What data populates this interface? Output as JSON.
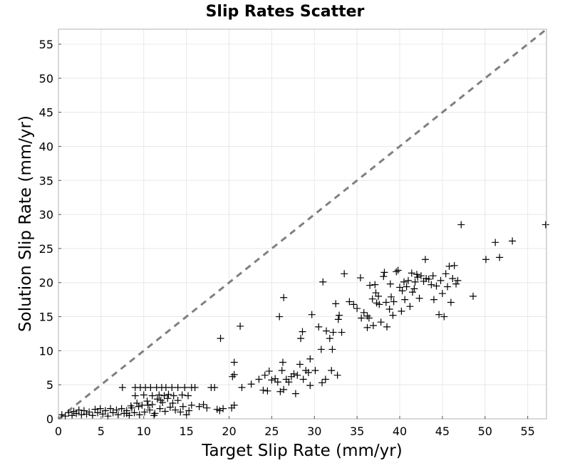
{
  "chart_data": {
    "type": "scatter",
    "title": "Slip Rates Scatter",
    "xlabel": "Target Slip Rate (mm/yr)",
    "ylabel": "Solution Slip Rate (mm/yr)",
    "xlim": [
      0,
      57.2
    ],
    "ylim": [
      0,
      57.2
    ],
    "xticks": [
      0,
      5,
      10,
      15,
      20,
      25,
      30,
      35,
      40,
      45,
      50,
      55
    ],
    "yticks": [
      0,
      5,
      10,
      15,
      20,
      25,
      30,
      35,
      40,
      45,
      50,
      55
    ],
    "grid": true,
    "marker": "plus",
    "marker_color": "#000000",
    "reference_line": {
      "label": "",
      "from": [
        0,
        0
      ],
      "to": [
        57.2,
        57.2
      ],
      "style": "dashed",
      "color": "#808080"
    },
    "series": [
      {
        "name": "",
        "points": [
          [
            0.4,
            0.6
          ],
          [
            0.8,
            0.4
          ],
          [
            1.2,
            0.9
          ],
          [
            1.6,
            0.5
          ],
          [
            1.8,
            1.1
          ],
          [
            2.1,
            0.8
          ],
          [
            2.4,
            1.3
          ],
          [
            2.7,
            0.6
          ],
          [
            3.0,
            1.2
          ],
          [
            3.3,
            0.7
          ],
          [
            3.6,
            1.0
          ],
          [
            4.0,
            0.5
          ],
          [
            4.3,
            1.4
          ],
          [
            4.6,
            0.9
          ],
          [
            4.9,
            1.5
          ],
          [
            5.2,
            0.7
          ],
          [
            5.5,
            1.2
          ],
          [
            5.8,
            0.4
          ],
          [
            6.1,
            1.5
          ],
          [
            6.4,
            0.9
          ],
          [
            6.8,
            1.3
          ],
          [
            7.0,
            0.6
          ],
          [
            7.4,
            1.5
          ],
          [
            7.7,
            0.8
          ],
          [
            8.0,
            1.2
          ],
          [
            8.3,
            0.5
          ],
          [
            8.6,
            1.6
          ],
          [
            8.9,
            0.9
          ],
          [
            9.2,
            2.3
          ],
          [
            9.5,
            0.6
          ],
          [
            9.8,
            2.0
          ],
          [
            10.1,
            1.0
          ],
          [
            10.4,
            2.6
          ],
          [
            10.7,
            1.3
          ],
          [
            11.0,
            2.1
          ],
          [
            11.3,
            0.8
          ],
          [
            11.6,
            2.9
          ],
          [
            11.9,
            1.5
          ],
          [
            12.2,
            2.4
          ],
          [
            12.5,
            1.1
          ],
          [
            12.8,
            3.0
          ],
          [
            13.1,
            1.7
          ],
          [
            13.4,
            2.3
          ],
          [
            13.7,
            1.3
          ],
          [
            14.0,
            2.7
          ],
          [
            14.3,
            1.0
          ],
          [
            14.6,
            1.8
          ],
          [
            15.0,
            0.6
          ],
          [
            15.3,
            1.2
          ],
          [
            15.6,
            2.0
          ],
          [
            7.5,
            4.6
          ],
          [
            8.0,
            0.8
          ],
          [
            8.5,
            1.9
          ],
          [
            9.0,
            3.4
          ],
          [
            9.0,
            4.6
          ],
          [
            9.4,
            1.8
          ],
          [
            9.6,
            4.6
          ],
          [
            10.0,
            3.5
          ],
          [
            10.2,
            4.6
          ],
          [
            10.5,
            2.0
          ],
          [
            10.8,
            4.6
          ],
          [
            11.0,
            3.4
          ],
          [
            11.2,
            0.5
          ],
          [
            11.5,
            4.6
          ],
          [
            11.8,
            3.5
          ],
          [
            12.0,
            2.7
          ],
          [
            12.1,
            4.6
          ],
          [
            12.4,
            3.4
          ],
          [
            12.6,
            4.6
          ],
          [
            12.9,
            3.6
          ],
          [
            13.3,
            4.6
          ],
          [
            13.5,
            3.4
          ],
          [
            14.0,
            4.6
          ],
          [
            14.5,
            3.5
          ],
          [
            14.8,
            4.6
          ],
          [
            15.2,
            3.4
          ],
          [
            15.6,
            4.6
          ],
          [
            16.0,
            4.6
          ],
          [
            16.5,
            1.8
          ],
          [
            17.0,
            2.1
          ],
          [
            17.4,
            1.6
          ],
          [
            17.9,
            4.6
          ],
          [
            18.3,
            4.6
          ],
          [
            18.6,
            1.4
          ],
          [
            18.9,
            1.2
          ],
          [
            19.3,
            1.5
          ],
          [
            19.0,
            11.8
          ],
          [
            20.3,
            1.6
          ],
          [
            20.6,
            2.0
          ],
          [
            20.4,
            6.2
          ],
          [
            20.6,
            6.5
          ],
          [
            20.6,
            8.3
          ],
          [
            21.3,
            13.6
          ],
          [
            21.5,
            4.6
          ],
          [
            22.6,
            5.1
          ],
          [
            23.5,
            5.8
          ],
          [
            24.0,
            4.2
          ],
          [
            24.2,
            6.4
          ],
          [
            24.5,
            4.1
          ],
          [
            24.7,
            7.0
          ],
          [
            25.0,
            5.7
          ],
          [
            25.4,
            5.9
          ],
          [
            25.7,
            5.4
          ],
          [
            25.9,
            15.0
          ],
          [
            26.0,
            4.0
          ],
          [
            26.2,
            7.1
          ],
          [
            26.3,
            8.3
          ],
          [
            26.4,
            4.3
          ],
          [
            26.4,
            17.8
          ],
          [
            26.7,
            5.8
          ],
          [
            27.0,
            5.4
          ],
          [
            27.3,
            6.2
          ],
          [
            27.6,
            6.6
          ],
          [
            27.8,
            3.7
          ],
          [
            28.0,
            6.4
          ],
          [
            28.3,
            8.0
          ],
          [
            28.4,
            11.8
          ],
          [
            28.6,
            12.8
          ],
          [
            28.7,
            5.8
          ],
          [
            29.0,
            7.1
          ],
          [
            29.3,
            6.8
          ],
          [
            29.5,
            8.8
          ],
          [
            29.7,
            15.3
          ],
          [
            29.5,
            4.9
          ],
          [
            30.1,
            7.1
          ],
          [
            30.5,
            13.5
          ],
          [
            30.8,
            10.2
          ],
          [
            30.9,
            5.3
          ],
          [
            31.0,
            20.1
          ],
          [
            31.3,
            5.8
          ],
          [
            31.4,
            12.9
          ],
          [
            31.8,
            11.8
          ],
          [
            32.0,
            7.1
          ],
          [
            32.1,
            10.2
          ],
          [
            32.2,
            12.7
          ],
          [
            32.5,
            16.9
          ],
          [
            32.7,
            6.4
          ],
          [
            32.8,
            14.6
          ],
          [
            32.9,
            15.2
          ],
          [
            33.2,
            12.7
          ],
          [
            33.5,
            21.3
          ],
          [
            34.1,
            17.2
          ],
          [
            34.6,
            16.8
          ],
          [
            35.0,
            16.2
          ],
          [
            35.4,
            20.7
          ],
          [
            35.5,
            14.8
          ],
          [
            35.8,
            15.6
          ],
          [
            36.2,
            15.1
          ],
          [
            36.2,
            13.4
          ],
          [
            36.4,
            14.8
          ],
          [
            36.5,
            19.6
          ],
          [
            36.9,
            13.7
          ],
          [
            36.8,
            17.6
          ],
          [
            37.1,
            19.7
          ],
          [
            37.2,
            18.5
          ],
          [
            37.3,
            17.0
          ],
          [
            37.5,
            18.0
          ],
          [
            37.6,
            16.8
          ],
          [
            37.8,
            14.2
          ],
          [
            38.1,
            20.9
          ],
          [
            38.2,
            21.5
          ],
          [
            38.4,
            17.1
          ],
          [
            38.5,
            13.5
          ],
          [
            38.8,
            16.1
          ],
          [
            38.9,
            19.8
          ],
          [
            39.0,
            17.9
          ],
          [
            39.2,
            15.2
          ],
          [
            39.3,
            17.2
          ],
          [
            39.6,
            21.6
          ],
          [
            39.8,
            21.8
          ],
          [
            40.0,
            19.3
          ],
          [
            40.2,
            15.8
          ],
          [
            40.3,
            18.8
          ],
          [
            40.5,
            20.1
          ],
          [
            40.6,
            17.5
          ],
          [
            40.8,
            19.4
          ],
          [
            41.0,
            20.3
          ],
          [
            41.2,
            16.5
          ],
          [
            41.4,
            21.4
          ],
          [
            41.5,
            18.6
          ],
          [
            41.7,
            19.1
          ],
          [
            41.8,
            20.1
          ],
          [
            42.0,
            21.2
          ],
          [
            42.1,
            20.8
          ],
          [
            42.3,
            17.7
          ],
          [
            42.5,
            21.0
          ],
          [
            42.8,
            20.2
          ],
          [
            43.0,
            23.4
          ],
          [
            43.1,
            20.6
          ],
          [
            43.4,
            20.5
          ],
          [
            43.7,
            19.7
          ],
          [
            43.9,
            21.0
          ],
          [
            44.0,
            17.5
          ],
          [
            44.3,
            19.5
          ],
          [
            44.6,
            15.3
          ],
          [
            44.8,
            20.3
          ],
          [
            45.0,
            18.4
          ],
          [
            45.2,
            15.0
          ],
          [
            45.4,
            21.3
          ],
          [
            45.6,
            19.4
          ],
          [
            45.8,
            22.4
          ],
          [
            46.0,
            17.1
          ],
          [
            46.2,
            20.6
          ],
          [
            46.4,
            22.5
          ],
          [
            46.6,
            19.8
          ],
          [
            46.8,
            20.3
          ],
          [
            47.2,
            28.5
          ],
          [
            48.6,
            18.0
          ],
          [
            50.1,
            23.4
          ],
          [
            51.2,
            25.9
          ],
          [
            51.7,
            23.7
          ],
          [
            53.2,
            26.1
          ],
          [
            57.1,
            28.5
          ]
        ]
      }
    ]
  }
}
